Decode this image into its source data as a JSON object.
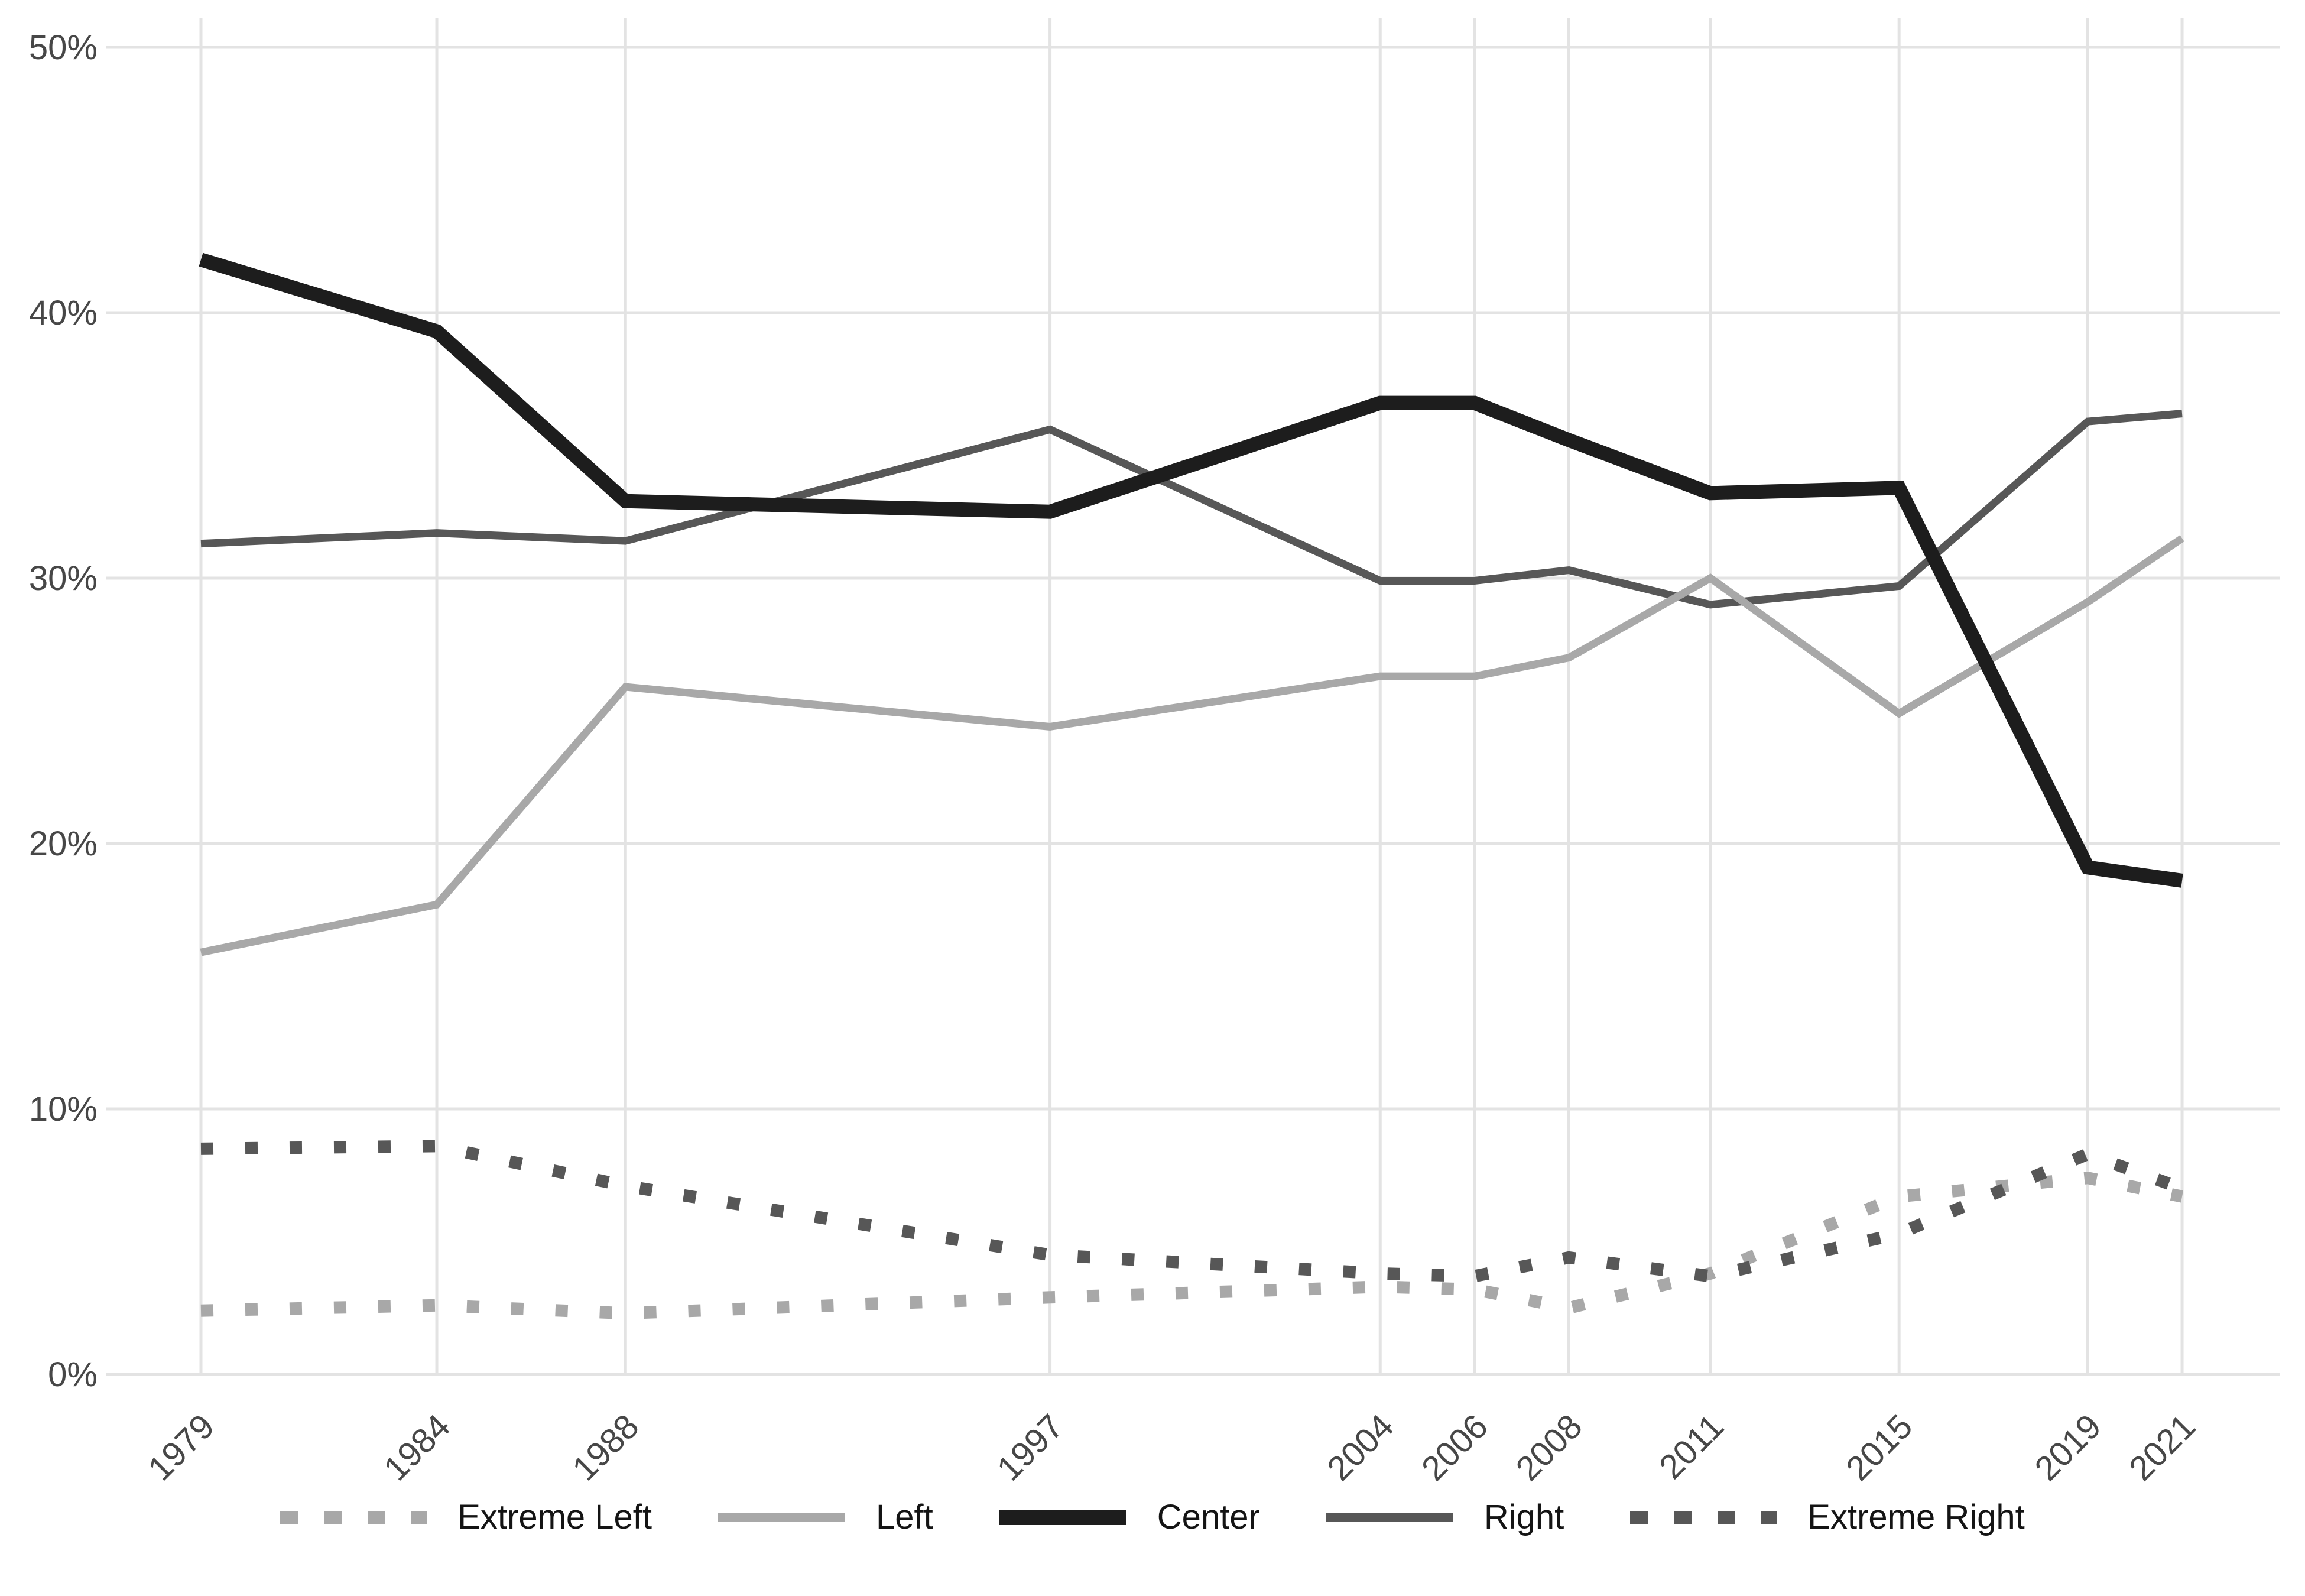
{
  "chart_data": {
    "type": "line",
    "title": "",
    "xlabel": "",
    "ylabel": "",
    "x": [
      1979,
      1984,
      1988,
      1997,
      2004,
      2006,
      2008,
      2011,
      2015,
      2019,
      2021
    ],
    "x_tick_labels": [
      "1979",
      "1984",
      "1988",
      "1997",
      "2004",
      "2006",
      "2008",
      "2011",
      "2015",
      "2019",
      "2021"
    ],
    "y_ticks": [
      0,
      10,
      20,
      30,
      40,
      50
    ],
    "y_tick_labels": [
      "0%",
      "10%",
      "20%",
      "30%",
      "40%",
      "50%"
    ],
    "ylim": [
      0,
      50
    ],
    "xlim": [
      1979,
      2021
    ],
    "grid": true,
    "legend_position": "bottom",
    "series": [
      {
        "name": "Extreme Left",
        "color": "#a8a8a8",
        "line_style": "dotted",
        "line_width": 21,
        "values": [
          2.4,
          2.6,
          2.3,
          2.9,
          3.3,
          3.2,
          2.5,
          3.8,
          6.7,
          7.4,
          6.7
        ]
      },
      {
        "name": "Left",
        "color": "#a8a8a8",
        "line_style": "solid",
        "line_width": 13,
        "values": [
          15.9,
          17.7,
          25.9,
          24.4,
          26.3,
          26.3,
          27.0,
          30.0,
          24.9,
          29.1,
          31.5
        ]
      },
      {
        "name": "Center",
        "color": "#1d1d1d",
        "line_style": "solid",
        "line_width": 24,
        "values": [
          42.0,
          39.3,
          32.9,
          32.5,
          36.6,
          36.6,
          35.2,
          33.2,
          33.4,
          19.1,
          18.6
        ]
      },
      {
        "name": "Right",
        "color": "#575757",
        "line_style": "solid",
        "line_width": 13,
        "values": [
          31.3,
          31.7,
          31.4,
          35.6,
          29.9,
          29.9,
          30.3,
          29.0,
          29.7,
          35.9,
          36.2
        ]
      },
      {
        "name": "Extreme Right",
        "color": "#575757",
        "line_style": "dotted",
        "line_width": 21,
        "values": [
          8.5,
          8.6,
          7.1,
          4.5,
          3.8,
          3.7,
          4.4,
          3.7,
          5.3,
          8.3,
          7.0
        ]
      }
    ],
    "colors": {
      "grid": "#e3e3e3",
      "axis_text": "#474747",
      "legend_text": "#141414",
      "background": "#ffffff"
    }
  }
}
